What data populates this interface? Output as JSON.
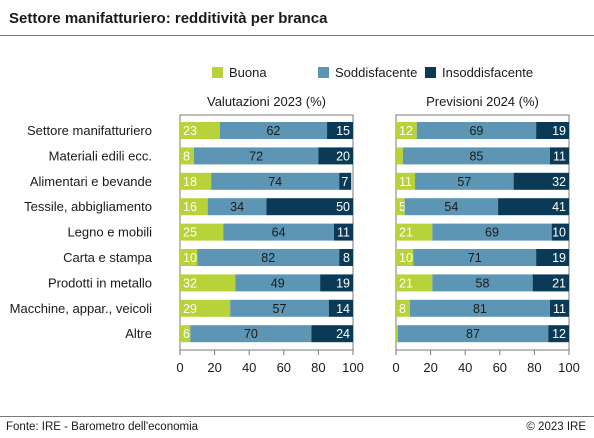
{
  "title": "Settore manifatturiero: redditività per branca",
  "footer": {
    "source": "Fonte: IRE - Barometro dell'economia",
    "copyright": "© 2023 IRE"
  },
  "colors": {
    "buona": "#b8d33a",
    "soddisfacente": "#5d96b4",
    "insoddisfacente": "#0b3a57"
  },
  "chart_data": [
    {
      "type": "bar",
      "stacked": true,
      "orientation": "horizontal",
      "title": "Valutazioni 2023 (%)",
      "categories": [
        "Settore manifatturiero",
        "Materiali edili ecc.",
        "Alimentari e bevande",
        "Tessile, abbigliamento",
        "Legno e mobili",
        "Carta e stampa",
        "Prodotti in metallo",
        "Macchine, appar., veicoli",
        "Altre"
      ],
      "series": [
        {
          "name": "Buona",
          "values": [
            23,
            8,
            18,
            16,
            25,
            10,
            32,
            29,
            6
          ]
        },
        {
          "name": "Soddisfacente",
          "values": [
            62,
            72,
            74,
            34,
            64,
            82,
            49,
            57,
            70
          ]
        },
        {
          "name": "Insoddisfacente",
          "values": [
            15,
            20,
            7,
            50,
            11,
            8,
            19,
            14,
            24
          ]
        }
      ],
      "xlim": [
        0,
        100
      ],
      "xticks": [
        0,
        20,
        40,
        60,
        80,
        100
      ],
      "legend": "top"
    },
    {
      "type": "bar",
      "stacked": true,
      "orientation": "horizontal",
      "title": "Previsioni 2024 (%)",
      "categories": [
        "Settore manifatturiero",
        "Materiali edili ecc.",
        "Alimentari e bevande",
        "Tessile, abbigliamento",
        "Legno e mobili",
        "Carta e stampa",
        "Prodotti in metallo",
        "Macchine, appar., veicoli",
        "Altre"
      ],
      "series": [
        {
          "name": "Buona",
          "values": [
            12,
            4,
            11,
            5,
            21,
            10,
            21,
            8,
            1
          ]
        },
        {
          "name": "Soddisfacente",
          "values": [
            69,
            85,
            57,
            54,
            69,
            71,
            58,
            81,
            87
          ]
        },
        {
          "name": "Insoddisfacente",
          "values": [
            19,
            11,
            32,
            41,
            10,
            19,
            21,
            11,
            12
          ]
        }
      ],
      "labels": [
        [
          "12",
          "69",
          "19"
        ],
        [
          "",
          "85",
          "11"
        ],
        [
          "11",
          "57",
          "32"
        ],
        [
          "5",
          "54",
          "41"
        ],
        [
          "21",
          "69",
          "10"
        ],
        [
          "10",
          "71",
          "19"
        ],
        [
          "21",
          "58",
          "21"
        ],
        [
          "8",
          "81",
          "11"
        ],
        [
          "",
          "87",
          "12"
        ]
      ],
      "xlim": [
        0,
        100
      ],
      "xticks": [
        0,
        20,
        40,
        60,
        80,
        100
      ],
      "legend": "top"
    }
  ]
}
